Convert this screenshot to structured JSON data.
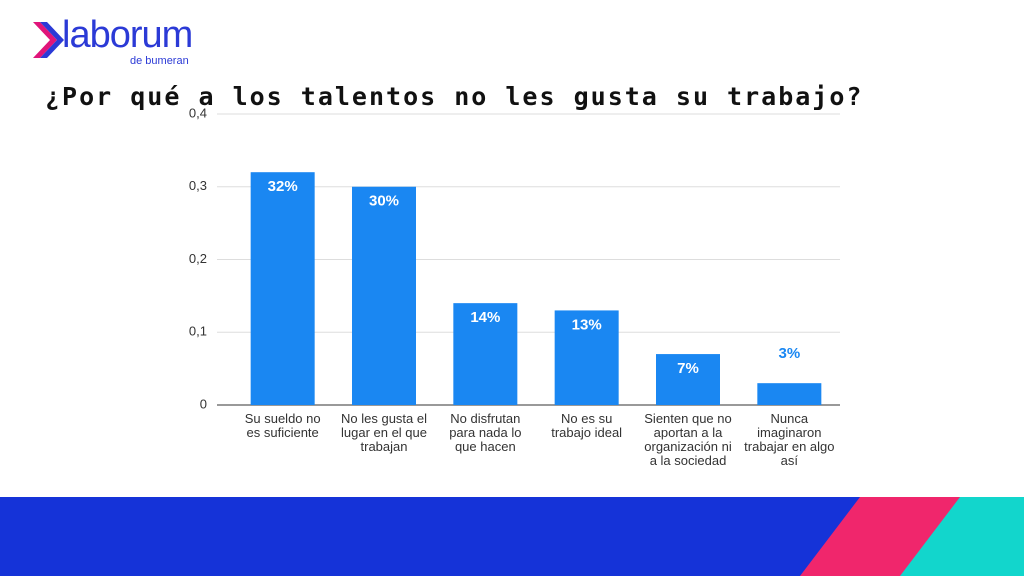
{
  "logo": {
    "name": "laborum",
    "tagline": "de bumeran"
  },
  "chart_data": {
    "type": "bar",
    "title": "¿Por qué a los talentos no les gusta su trabajo?",
    "categories": [
      "Su sueldo no es suficiente",
      "No les gusta el lugar en el que trabajan",
      "No disfrutan para nada lo que hacen",
      "No es su trabajo ideal",
      "Sienten que no aportan a la organización ni a la sociedad",
      "Nunca imaginaron trabajar en algo así"
    ],
    "values": [
      0.32,
      0.3,
      0.14,
      0.13,
      0.07,
      0.03
    ],
    "value_labels": [
      "32%",
      "30%",
      "14%",
      "13%",
      "7%",
      "3%"
    ],
    "color": "#1a87f2",
    "ylim": [
      0,
      0.4
    ],
    "yticks": [
      0,
      {
        "value": 0.1,
        "label": "0,1"
      },
      {
        "value": 0.2,
        "label": "0,2"
      },
      {
        "value": 0.3,
        "label": "0,3"
      },
      {
        "value": 0.4,
        "label": "0,4"
      }
    ],
    "grid": true
  }
}
